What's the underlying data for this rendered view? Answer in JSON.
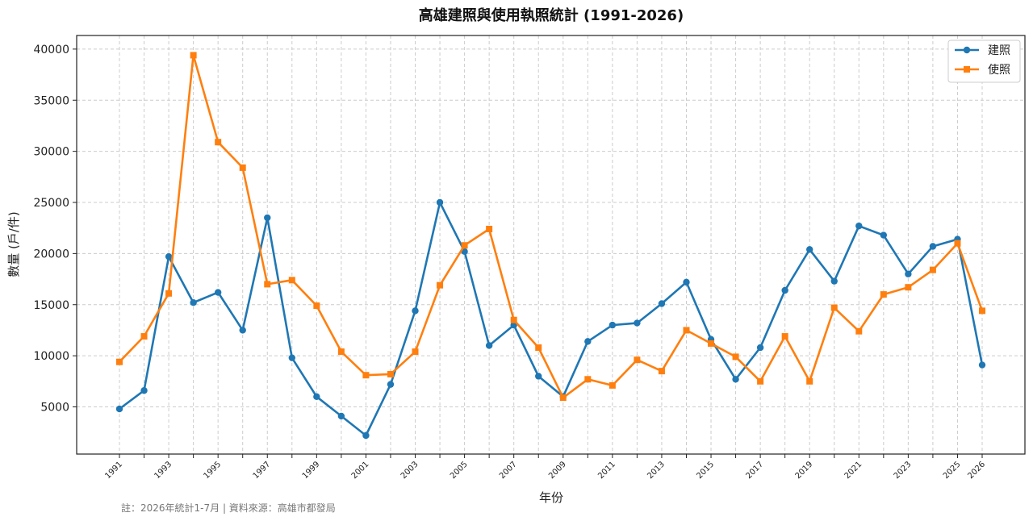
{
  "chart_data": {
    "type": "line",
    "title": "高雄建照與使用執照統計 (1991-2026)",
    "xlabel": "年份",
    "ylabel": "數量 (戶/件)",
    "footnote": "註：2026年統計1-7月 | 資料來源：高雄市都發局",
    "x": [
      1991,
      1992,
      1993,
      1994,
      1995,
      1996,
      1997,
      1998,
      1999,
      2000,
      2001,
      2002,
      2003,
      2004,
      2005,
      2006,
      2007,
      2008,
      2009,
      2010,
      2011,
      2012,
      2013,
      2014,
      2015,
      2016,
      2017,
      2018,
      2019,
      2020,
      2021,
      2022,
      2023,
      2024,
      2025,
      2026
    ],
    "x_tick_labels": [
      "1991",
      "1993",
      "1995",
      "1997",
      "1999",
      "2001",
      "2003",
      "2005",
      "2007",
      "2009",
      "2011",
      "2013",
      "2015",
      "2017",
      "2019",
      "2021",
      "2023",
      "2025",
      "2026"
    ],
    "y_ticks": [
      5000,
      10000,
      15000,
      20000,
      25000,
      30000,
      35000,
      40000
    ],
    "ylim": [
      500,
      41000
    ],
    "grid": true,
    "legend_position": "top-right",
    "series": [
      {
        "name": "建照",
        "color": "#1f77b4",
        "marker": "circle",
        "values": [
          4800,
          6600,
          19700,
          15200,
          16200,
          12500,
          23500,
          9800,
          6000,
          4100,
          2200,
          7200,
          14400,
          25000,
          20200,
          11000,
          13000,
          8000,
          6000,
          11400,
          13000,
          13200,
          15100,
          17200,
          11600,
          7700,
          10800,
          16400,
          20400,
          17300,
          22700,
          21800,
          18000,
          20700,
          21400,
          9100
        ]
      },
      {
        "name": "使照",
        "color": "#ff7f0e",
        "marker": "square",
        "values": [
          9400,
          11900,
          16100,
          39400,
          30900,
          28400,
          17000,
          17400,
          14900,
          10400,
          8100,
          8200,
          10400,
          16900,
          20800,
          22400,
          13500,
          10800,
          5900,
          7700,
          7100,
          9600,
          8500,
          12500,
          11200,
          9900,
          7500,
          11900,
          7500,
          14700,
          12400,
          16000,
          16700,
          18400,
          21000,
          14400
        ]
      }
    ]
  }
}
